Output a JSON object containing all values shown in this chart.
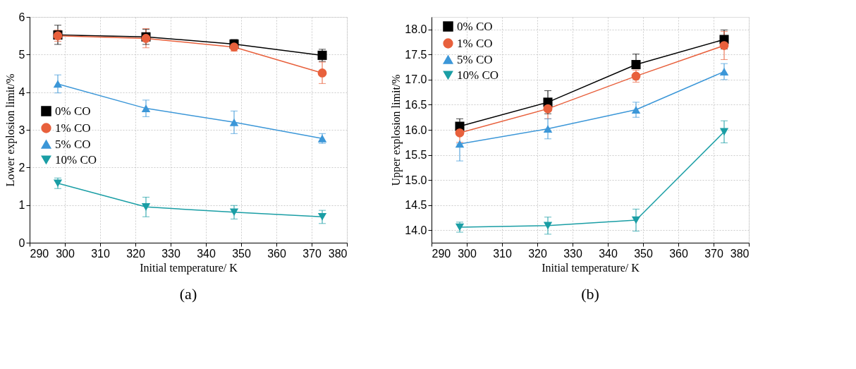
{
  "chart_data": [
    {
      "type": "line",
      "xlabel": "Initial temperature/ K",
      "ylabel": "Lower explosion limit/%",
      "annotations": [
        "(a)"
      ],
      "x": [
        298,
        323,
        348,
        373
      ],
      "xlim": [
        290,
        380
      ],
      "xticks": [
        290,
        300,
        310,
        320,
        330,
        340,
        350,
        360,
        370,
        380
      ],
      "ylim": [
        0,
        6
      ],
      "yticks": [
        0,
        1,
        2,
        3,
        4,
        5,
        6
      ],
      "grid": true,
      "legend": "left",
      "line_style": "solid",
      "series": [
        {
          "name": "0% CO",
          "color": "#000000",
          "marker": "square",
          "values": [
            5.52,
            5.47,
            5.28,
            4.98
          ],
          "errors": [
            [
              5.27,
              5.78
            ],
            [
              5.27,
              5.67
            ],
            [
              5.28,
              5.4
            ],
            [
              4.82,
              5.14
            ]
          ]
        },
        {
          "name": "1% CO",
          "color": "#e8603c",
          "marker": "circle",
          "values": [
            5.5,
            5.43,
            5.2,
            4.51
          ],
          "errors": [
            [
              5.35,
              5.65
            ],
            [
              5.18,
              5.69
            ],
            [
              5.09,
              5.31
            ],
            [
              4.23,
              4.8
            ]
          ]
        },
        {
          "name": "5% CO",
          "color": "#3c97d8",
          "marker": "triangle",
          "values": [
            4.22,
            3.57,
            3.2,
            2.77
          ],
          "errors": [
            [
              3.98,
              4.46
            ],
            [
              3.35,
              3.79
            ],
            [
              2.9,
              3.5
            ],
            [
              2.64,
              2.9
            ]
          ]
        },
        {
          "name": "10% CO",
          "color": "#1a9ea5",
          "marker": "triangle-down",
          "values": [
            1.58,
            0.95,
            0.81,
            0.69
          ],
          "errors": [
            [
              1.44,
              1.72
            ],
            [
              0.69,
              1.21
            ],
            [
              0.63,
              0.99
            ],
            [
              0.51,
              0.86
            ]
          ]
        }
      ]
    },
    {
      "type": "line",
      "xlabel": "Initial temperature/ K",
      "ylabel": "Upper explosion limit/%",
      "annotations": [
        "(b)"
      ],
      "x": [
        298,
        323,
        348,
        373
      ],
      "xlim": [
        290,
        380
      ],
      "xticks": [
        290,
        300,
        310,
        320,
        330,
        340,
        350,
        360,
        370,
        380
      ],
      "ylim": [
        13.75,
        18.25
      ],
      "yticks": [
        {
          "value": 14,
          "label": "14.0"
        },
        14.5,
        {
          "value": 15,
          "label": "15.0"
        },
        15.5,
        {
          "value": 16,
          "label": "16.0"
        },
        16.5,
        {
          "value": 17,
          "label": "17.0"
        },
        17.5,
        {
          "value": 18,
          "label": "18.0"
        }
      ],
      "grid": true,
      "legend": "top left",
      "line_style": "solid",
      "series": [
        {
          "name": "0% CO",
          "color": "#000000",
          "marker": "square",
          "values": [
            16.07,
            16.55,
            17.3,
            17.8
          ],
          "errors": [
            [
              16.07,
              16.22
            ],
            [
              16.32,
              16.78
            ],
            [
              17.3,
              17.51
            ],
            [
              17.61,
              17.99
            ]
          ]
        },
        {
          "name": "1% CO",
          "color": "#e8603c",
          "marker": "circle",
          "values": [
            15.94,
            16.42,
            17.07,
            17.68
          ],
          "errors": [
            [
              15.75,
              16.13
            ],
            [
              16.22,
              16.62
            ],
            [
              16.95,
              17.19
            ],
            [
              17.4,
              17.96
            ]
          ]
        },
        {
          "name": "5% CO",
          "color": "#3c97d8",
          "marker": "triangle",
          "values": [
            15.72,
            16.02,
            16.4,
            17.16
          ],
          "errors": [
            [
              15.38,
              15.72
            ],
            [
              15.82,
              16.22
            ],
            [
              16.25,
              16.55
            ],
            [
              17.0,
              17.32
            ]
          ]
        },
        {
          "name": "10% CO",
          "color": "#1a9ea5",
          "marker": "triangle-down",
          "values": [
            14.06,
            14.09,
            14.2,
            15.96
          ],
          "errors": [
            [
              13.96,
              14.16
            ],
            [
              13.92,
              14.26
            ],
            [
              13.98,
              14.42
            ],
            [
              15.74,
              16.18
            ]
          ]
        }
      ]
    }
  ]
}
